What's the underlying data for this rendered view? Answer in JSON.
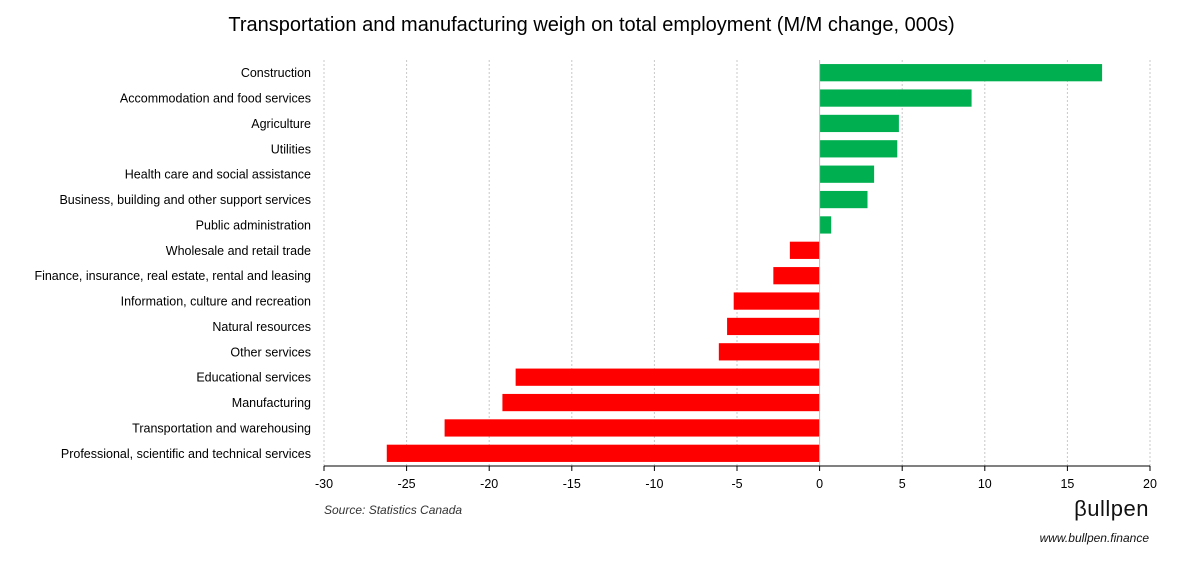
{
  "chart_data": {
    "type": "bar",
    "orientation": "horizontal",
    "title": "Transportation and manufacturing weigh on total employment (M/M change, 000s)",
    "categories": [
      "Construction",
      "Accommodation and food services",
      "Agriculture",
      "Utilities",
      "Health care and social assistance",
      "Business, building and other support services",
      "Public administration",
      "Wholesale and retail trade",
      "Finance, insurance, real estate, rental and leasing",
      "Information, culture and recreation",
      "Natural resources",
      "Other services",
      "Educational services",
      "Manufacturing",
      "Transportation and warehousing",
      "Professional, scientific and technical services"
    ],
    "values": [
      17.1,
      9.2,
      4.8,
      4.7,
      3.3,
      2.9,
      0.7,
      -1.8,
      -2.8,
      -5.2,
      -5.6,
      -6.1,
      -18.4,
      -19.2,
      -22.7,
      -26.2
    ],
    "xlim": [
      -30,
      20
    ],
    "xticks": [
      "-30",
      "-25",
      "-20",
      "-15",
      "-10",
      "-5",
      "0",
      "5",
      "10",
      "15",
      "20"
    ],
    "xtick_values": [
      -30,
      -25,
      -20,
      -15,
      -10,
      -5,
      0,
      5,
      10,
      15,
      20
    ],
    "grid": "vertical dotted",
    "colors": {
      "positive": "#00b050",
      "negative": "#ff0000"
    }
  },
  "source": "Source: Statistics Canada",
  "brand": {
    "logo": "βullpen",
    "url": "www.bullpen.finance"
  }
}
